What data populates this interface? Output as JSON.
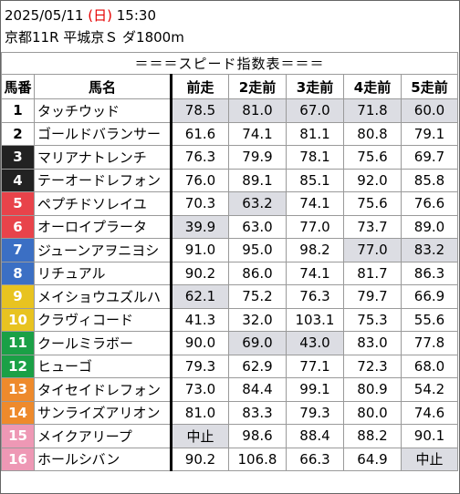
{
  "header": {
    "date": "2025/05/11",
    "dow_open": "(",
    "dow": "日",
    "dow_close": ")",
    "time": "15:30",
    "race": "京都11R 平城京Ｓ ダ1800m"
  },
  "table_title": "＝＝＝スピード指数表＝＝＝",
  "columns": [
    "馬番",
    "馬名",
    "前走",
    "2走前",
    "3走前",
    "4走前",
    "5走前"
  ],
  "rows": [
    {
      "num": "1",
      "name": "タッチウッド",
      "vals": [
        "78.5",
        "81.0",
        "67.0",
        "71.8",
        "60.0"
      ],
      "hl": [
        true,
        true,
        true,
        true,
        true
      ]
    },
    {
      "num": "2",
      "name": "ゴールドバランサー",
      "vals": [
        "61.6",
        "74.1",
        "81.1",
        "80.8",
        "79.1"
      ],
      "hl": [
        false,
        false,
        false,
        false,
        false
      ]
    },
    {
      "num": "3",
      "name": "マリアナトレンチ",
      "vals": [
        "76.3",
        "79.9",
        "78.1",
        "75.6",
        "69.7"
      ],
      "hl": [
        false,
        false,
        false,
        false,
        false
      ]
    },
    {
      "num": "4",
      "name": "テーオードレフォン",
      "vals": [
        "76.0",
        "89.1",
        "85.1",
        "92.0",
        "85.8"
      ],
      "hl": [
        false,
        false,
        false,
        false,
        false
      ]
    },
    {
      "num": "5",
      "name": "ペプチドソレイユ",
      "vals": [
        "70.3",
        "63.2",
        "74.1",
        "75.6",
        "76.6"
      ],
      "hl": [
        false,
        true,
        false,
        false,
        false
      ]
    },
    {
      "num": "6",
      "name": "オーロイプラータ",
      "vals": [
        "39.9",
        "63.0",
        "77.0",
        "73.7",
        "89.0"
      ],
      "hl": [
        true,
        false,
        false,
        false,
        false
      ]
    },
    {
      "num": "7",
      "name": "ジューンアヲニヨシ",
      "vals": [
        "91.0",
        "95.0",
        "98.2",
        "77.0",
        "83.2"
      ],
      "hl": [
        false,
        false,
        false,
        true,
        true
      ]
    },
    {
      "num": "8",
      "name": "リチュアル",
      "vals": [
        "90.2",
        "86.0",
        "74.1",
        "81.7",
        "86.3"
      ],
      "hl": [
        false,
        false,
        false,
        false,
        false
      ]
    },
    {
      "num": "9",
      "name": "メイショウユズルハ",
      "vals": [
        "62.1",
        "75.2",
        "76.3",
        "79.7",
        "66.9"
      ],
      "hl": [
        true,
        false,
        false,
        false,
        false
      ]
    },
    {
      "num": "10",
      "name": "クラヴィコード",
      "vals": [
        "41.3",
        "32.0",
        "103.1",
        "75.3",
        "55.6"
      ],
      "hl": [
        false,
        false,
        false,
        false,
        false
      ]
    },
    {
      "num": "11",
      "name": "クールミラボー",
      "vals": [
        "90.0",
        "69.0",
        "43.0",
        "83.0",
        "77.8"
      ],
      "hl": [
        false,
        true,
        true,
        false,
        false
      ]
    },
    {
      "num": "12",
      "name": "ヒューゴ",
      "vals": [
        "79.3",
        "62.9",
        "77.1",
        "72.3",
        "68.0"
      ],
      "hl": [
        false,
        false,
        false,
        false,
        false
      ]
    },
    {
      "num": "13",
      "name": "タイセイドレフォン",
      "vals": [
        "73.0",
        "84.4",
        "99.1",
        "80.9",
        "54.2"
      ],
      "hl": [
        false,
        false,
        false,
        false,
        false
      ]
    },
    {
      "num": "14",
      "name": "サンライズアリオン",
      "vals": [
        "81.0",
        "83.3",
        "79.3",
        "80.0",
        "74.6"
      ],
      "hl": [
        false,
        false,
        false,
        false,
        false
      ]
    },
    {
      "num": "15",
      "name": "メイクアリープ",
      "vals": [
        "中止",
        "98.6",
        "88.4",
        "88.2",
        "90.1"
      ],
      "hl": [
        true,
        false,
        false,
        false,
        false
      ]
    },
    {
      "num": "16",
      "name": "ホールシバン",
      "vals": [
        "90.2",
        "106.8",
        "66.3",
        "64.9",
        "中止"
      ],
      "hl": [
        false,
        false,
        false,
        false,
        true
      ]
    }
  ]
}
